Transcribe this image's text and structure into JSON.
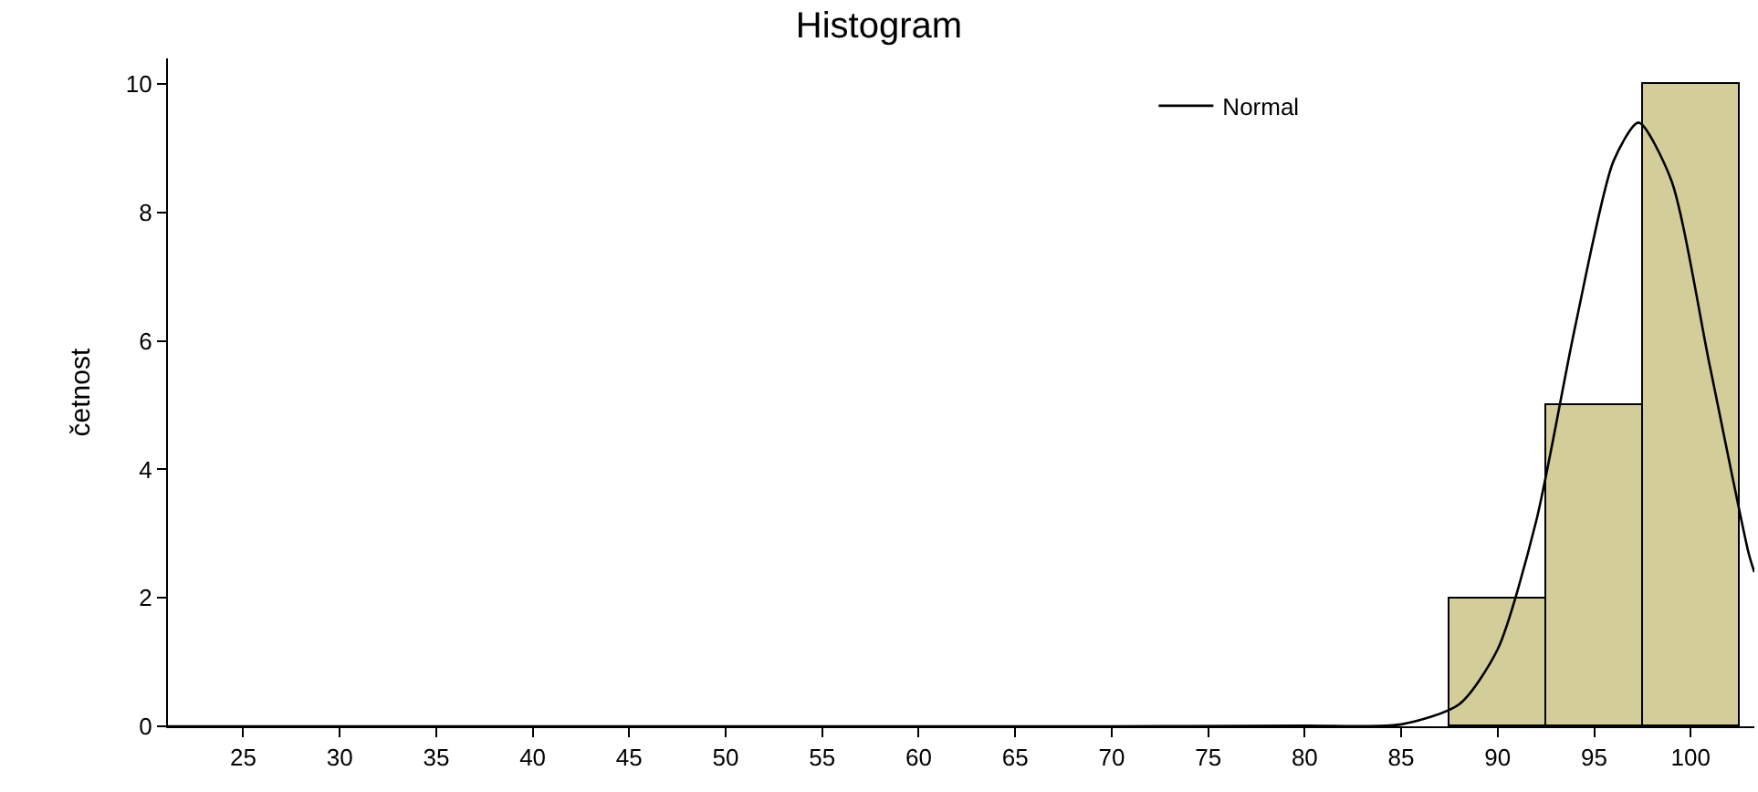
{
  "chart_data": {
    "type": "histogram",
    "title": "Histogram",
    "ylabel": "četnost",
    "series": [
      {
        "type": "histogram",
        "bins": [
          87.5,
          92.5,
          97.5,
          102.5
        ],
        "values": [
          2,
          5,
          10
        ],
        "color": "#d3cd99"
      },
      {
        "type": "line",
        "name": "Normal",
        "color": "#000000",
        "x": [
          21.1,
          70,
          80,
          85,
          88,
          90,
          92,
          94,
          96,
          97.3,
          99,
          101,
          103,
          103.3
        ],
        "values": [
          0,
          0,
          0.01,
          0.03,
          0.34,
          1.2,
          3.2,
          6.2,
          8.8,
          9.4,
          8.5,
          5.6,
          2.7,
          2.4
        ]
      }
    ],
    "xlim": [
      21.1,
      103.3
    ],
    "xticks": [
      25,
      30,
      35,
      40,
      45,
      50,
      55,
      60,
      65,
      70,
      75,
      80,
      85,
      90,
      95,
      100
    ],
    "ylim": [
      0,
      10.4
    ],
    "yticks": [
      0,
      2,
      4,
      6,
      8,
      10
    ],
    "legend": "top right",
    "marker": "none",
    "line_style": "solid"
  }
}
